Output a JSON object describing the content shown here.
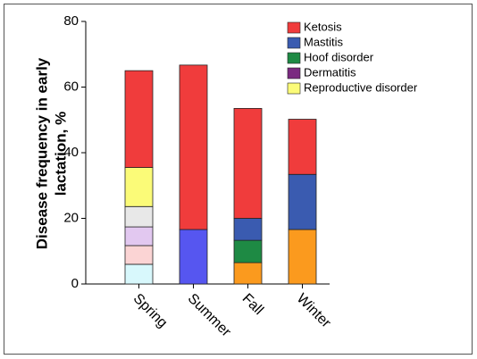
{
  "chart_data": {
    "type": "stacked-bar",
    "y_label": [
      "Disease frequency in early",
      "lactation, %"
    ],
    "categories": [
      "Spring",
      "Summer",
      "Fall",
      "Winter"
    ],
    "ylim": [
      0,
      80
    ],
    "yticks": [
      0,
      20,
      40,
      60,
      80
    ],
    "series": [
      {
        "name": "Ketosis",
        "color": "#f03c3c",
        "values": [
          29.5,
          50.1,
          33.5,
          16.8
        ]
      },
      {
        "name": "Mastitis",
        "color": "#3a5bb0",
        "colors": [
          "#3a5bb0",
          "#5656f0",
          "#3a5bb0",
          "#3a5bb0"
        ],
        "values": [
          null,
          16.6,
          6.7,
          16.8
        ]
      },
      {
        "name": "Hoof disorder",
        "color": "#1e8a44",
        "values": [
          null,
          null,
          6.8,
          null
        ]
      },
      {
        "name": "Dermatitis",
        "color": "#7a2a80",
        "values": [
          null,
          null,
          null,
          null
        ]
      },
      {
        "name": "Reproductive disorder",
        "color": "#fbfb78",
        "values": [
          11.9,
          null,
          null,
          null
        ]
      },
      {
        "color": "#e8e8e8",
        "values": [
          6.2,
          null,
          null,
          null
        ]
      },
      {
        "color": "#e2c8f0",
        "values": [
          5.7,
          null,
          null,
          null
        ]
      },
      {
        "color": "#fbd4d4",
        "values": [
          5.7,
          null,
          null,
          null
        ]
      },
      {
        "color": "#fb9a1e",
        "colors": [
          "#d8f8fc",
          null,
          "#fb9a1e",
          "#fb9a1e"
        ],
        "values": [
          6.0,
          null,
          6.5,
          16.6
        ]
      }
    ]
  }
}
